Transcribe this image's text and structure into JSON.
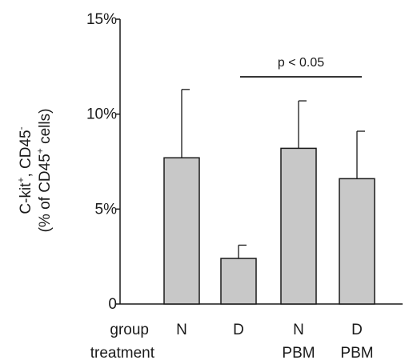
{
  "chart_data": {
    "type": "bar",
    "categories": [
      "N",
      "D",
      "N",
      "D"
    ],
    "treatments": [
      "",
      "",
      "PBM",
      "PBM"
    ],
    "row_labels": {
      "group": "group",
      "treatment": "treatment"
    },
    "values": [
      7.7,
      2.4,
      8.2,
      6.6
    ],
    "errors": [
      3.6,
      0.7,
      2.5,
      2.5
    ],
    "ylim": [
      0,
      15
    ],
    "yticks": [
      {
        "value": 0,
        "label": "0"
      },
      {
        "value": 5,
        "label": "5%"
      },
      {
        "value": 10,
        "label": "10%"
      },
      {
        "value": 15,
        "label": "15%"
      }
    ],
    "ylabel": {
      "line1": {
        "a": "C-kit",
        "a_sup": "+",
        "b": ", CD45",
        "b_sup": "-"
      },
      "line2": {
        "a": "(% of CD45",
        "a_sup": "+",
        "b": " cells)"
      }
    },
    "significance": {
      "from": 1,
      "to": 3,
      "label": "p < 0.05"
    },
    "colors": {
      "bar": "#c8c8c8",
      "ink": "#1a1a1a"
    },
    "grid": false,
    "legend": "none"
  }
}
